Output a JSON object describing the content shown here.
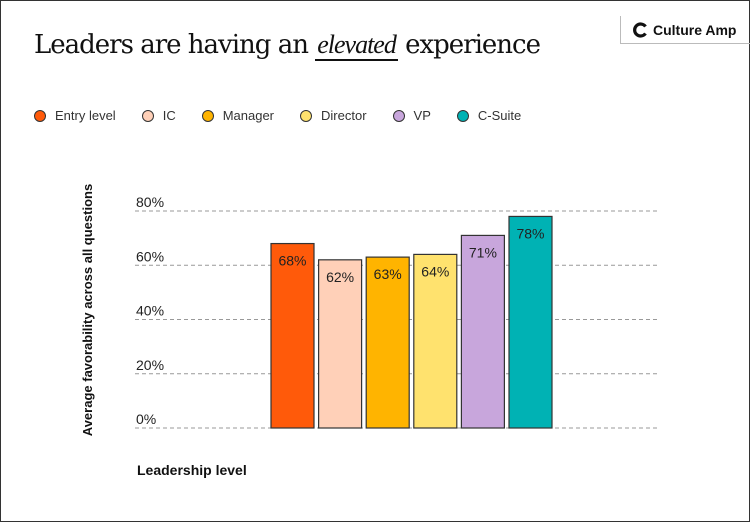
{
  "header": {
    "title_before": "Leaders are having an ",
    "title_highlight": "elevated",
    "title_after": " experience",
    "logo_text": "Culture Amp"
  },
  "chart_data": {
    "type": "bar",
    "categories": [
      "Entry level",
      "IC",
      "Manager",
      "Director",
      "VP",
      "C-Suite"
    ],
    "values": [
      68,
      62,
      63,
      64,
      71,
      78
    ],
    "data_labels": [
      "68%",
      "62%",
      "63%",
      "64%",
      "71%",
      "78%"
    ],
    "colors": [
      "#FF5A0A",
      "#FFD0B8",
      "#FFB400",
      "#FFE26E",
      "#C8A6DC",
      "#00B2B4"
    ],
    "xlabel": "Leadership level",
    "ylabel": "Average favorability across all questions",
    "ylim": [
      0,
      80
    ],
    "yticks": [
      0,
      20,
      40,
      60,
      80
    ],
    "ytick_labels": [
      "0%",
      "20%",
      "40%",
      "60%",
      "80%"
    ],
    "grid": true,
    "legend_placement": "top-left"
  }
}
